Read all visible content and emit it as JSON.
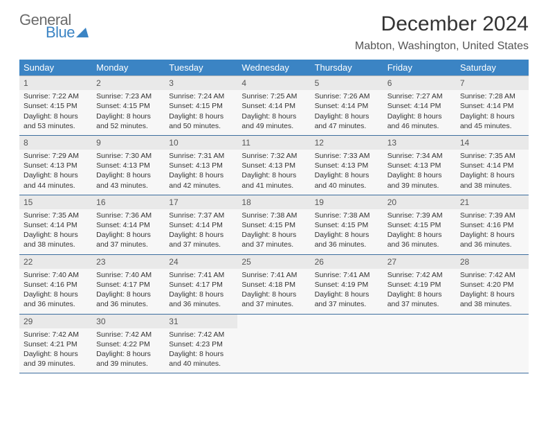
{
  "logo": {
    "word1": "General",
    "word2": "Blue"
  },
  "title": "December 2024",
  "location": "Mabton, Washington, United States",
  "colors": {
    "header_bg": "#3b84c4",
    "header_text": "#ffffff",
    "row_divider": "#3b6d9e",
    "cell_bg": "#f7f7f7",
    "daynum_bg": "#e9e9e9",
    "text": "#333333",
    "logo_gray": "#6b6b6b",
    "logo_blue": "#3b84c4"
  },
  "day_headers": [
    "Sunday",
    "Monday",
    "Tuesday",
    "Wednesday",
    "Thursday",
    "Friday",
    "Saturday"
  ],
  "weeks": [
    [
      {
        "n": "1",
        "sr": "Sunrise: 7:22 AM",
        "ss": "Sunset: 4:15 PM",
        "d1": "Daylight: 8 hours",
        "d2": "and 53 minutes."
      },
      {
        "n": "2",
        "sr": "Sunrise: 7:23 AM",
        "ss": "Sunset: 4:15 PM",
        "d1": "Daylight: 8 hours",
        "d2": "and 52 minutes."
      },
      {
        "n": "3",
        "sr": "Sunrise: 7:24 AM",
        "ss": "Sunset: 4:15 PM",
        "d1": "Daylight: 8 hours",
        "d2": "and 50 minutes."
      },
      {
        "n": "4",
        "sr": "Sunrise: 7:25 AM",
        "ss": "Sunset: 4:14 PM",
        "d1": "Daylight: 8 hours",
        "d2": "and 49 minutes."
      },
      {
        "n": "5",
        "sr": "Sunrise: 7:26 AM",
        "ss": "Sunset: 4:14 PM",
        "d1": "Daylight: 8 hours",
        "d2": "and 47 minutes."
      },
      {
        "n": "6",
        "sr": "Sunrise: 7:27 AM",
        "ss": "Sunset: 4:14 PM",
        "d1": "Daylight: 8 hours",
        "d2": "and 46 minutes."
      },
      {
        "n": "7",
        "sr": "Sunrise: 7:28 AM",
        "ss": "Sunset: 4:14 PM",
        "d1": "Daylight: 8 hours",
        "d2": "and 45 minutes."
      }
    ],
    [
      {
        "n": "8",
        "sr": "Sunrise: 7:29 AM",
        "ss": "Sunset: 4:13 PM",
        "d1": "Daylight: 8 hours",
        "d2": "and 44 minutes."
      },
      {
        "n": "9",
        "sr": "Sunrise: 7:30 AM",
        "ss": "Sunset: 4:13 PM",
        "d1": "Daylight: 8 hours",
        "d2": "and 43 minutes."
      },
      {
        "n": "10",
        "sr": "Sunrise: 7:31 AM",
        "ss": "Sunset: 4:13 PM",
        "d1": "Daylight: 8 hours",
        "d2": "and 42 minutes."
      },
      {
        "n": "11",
        "sr": "Sunrise: 7:32 AM",
        "ss": "Sunset: 4:13 PM",
        "d1": "Daylight: 8 hours",
        "d2": "and 41 minutes."
      },
      {
        "n": "12",
        "sr": "Sunrise: 7:33 AM",
        "ss": "Sunset: 4:13 PM",
        "d1": "Daylight: 8 hours",
        "d2": "and 40 minutes."
      },
      {
        "n": "13",
        "sr": "Sunrise: 7:34 AM",
        "ss": "Sunset: 4:13 PM",
        "d1": "Daylight: 8 hours",
        "d2": "and 39 minutes."
      },
      {
        "n": "14",
        "sr": "Sunrise: 7:35 AM",
        "ss": "Sunset: 4:14 PM",
        "d1": "Daylight: 8 hours",
        "d2": "and 38 minutes."
      }
    ],
    [
      {
        "n": "15",
        "sr": "Sunrise: 7:35 AM",
        "ss": "Sunset: 4:14 PM",
        "d1": "Daylight: 8 hours",
        "d2": "and 38 minutes."
      },
      {
        "n": "16",
        "sr": "Sunrise: 7:36 AM",
        "ss": "Sunset: 4:14 PM",
        "d1": "Daylight: 8 hours",
        "d2": "and 37 minutes."
      },
      {
        "n": "17",
        "sr": "Sunrise: 7:37 AM",
        "ss": "Sunset: 4:14 PM",
        "d1": "Daylight: 8 hours",
        "d2": "and 37 minutes."
      },
      {
        "n": "18",
        "sr": "Sunrise: 7:38 AM",
        "ss": "Sunset: 4:15 PM",
        "d1": "Daylight: 8 hours",
        "d2": "and 37 minutes."
      },
      {
        "n": "19",
        "sr": "Sunrise: 7:38 AM",
        "ss": "Sunset: 4:15 PM",
        "d1": "Daylight: 8 hours",
        "d2": "and 36 minutes."
      },
      {
        "n": "20",
        "sr": "Sunrise: 7:39 AM",
        "ss": "Sunset: 4:15 PM",
        "d1": "Daylight: 8 hours",
        "d2": "and 36 minutes."
      },
      {
        "n": "21",
        "sr": "Sunrise: 7:39 AM",
        "ss": "Sunset: 4:16 PM",
        "d1": "Daylight: 8 hours",
        "d2": "and 36 minutes."
      }
    ],
    [
      {
        "n": "22",
        "sr": "Sunrise: 7:40 AM",
        "ss": "Sunset: 4:16 PM",
        "d1": "Daylight: 8 hours",
        "d2": "and 36 minutes."
      },
      {
        "n": "23",
        "sr": "Sunrise: 7:40 AM",
        "ss": "Sunset: 4:17 PM",
        "d1": "Daylight: 8 hours",
        "d2": "and 36 minutes."
      },
      {
        "n": "24",
        "sr": "Sunrise: 7:41 AM",
        "ss": "Sunset: 4:17 PM",
        "d1": "Daylight: 8 hours",
        "d2": "and 36 minutes."
      },
      {
        "n": "25",
        "sr": "Sunrise: 7:41 AM",
        "ss": "Sunset: 4:18 PM",
        "d1": "Daylight: 8 hours",
        "d2": "and 37 minutes."
      },
      {
        "n": "26",
        "sr": "Sunrise: 7:41 AM",
        "ss": "Sunset: 4:19 PM",
        "d1": "Daylight: 8 hours",
        "d2": "and 37 minutes."
      },
      {
        "n": "27",
        "sr": "Sunrise: 7:42 AM",
        "ss": "Sunset: 4:19 PM",
        "d1": "Daylight: 8 hours",
        "d2": "and 37 minutes."
      },
      {
        "n": "28",
        "sr": "Sunrise: 7:42 AM",
        "ss": "Sunset: 4:20 PM",
        "d1": "Daylight: 8 hours",
        "d2": "and 38 minutes."
      }
    ],
    [
      {
        "n": "29",
        "sr": "Sunrise: 7:42 AM",
        "ss": "Sunset: 4:21 PM",
        "d1": "Daylight: 8 hours",
        "d2": "and 39 minutes."
      },
      {
        "n": "30",
        "sr": "Sunrise: 7:42 AM",
        "ss": "Sunset: 4:22 PM",
        "d1": "Daylight: 8 hours",
        "d2": "and 39 minutes."
      },
      {
        "n": "31",
        "sr": "Sunrise: 7:42 AM",
        "ss": "Sunset: 4:23 PM",
        "d1": "Daylight: 8 hours",
        "d2": "and 40 minutes."
      },
      {
        "empty": true
      },
      {
        "empty": true
      },
      {
        "empty": true
      },
      {
        "empty": true
      }
    ]
  ]
}
